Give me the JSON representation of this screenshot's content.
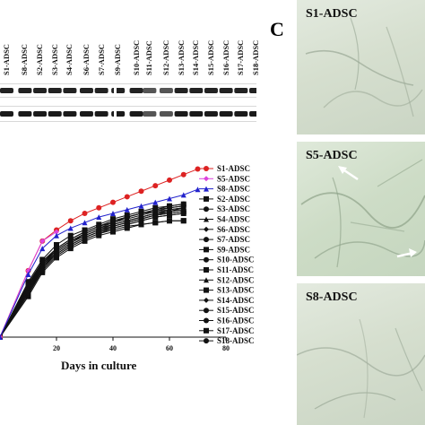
{
  "panel_c_letter": "C",
  "blot": {
    "lane_labels": [
      "S1-ADSC",
      "S8-ADSC",
      "S2-ADSC",
      "S3-ADSC",
      "S4-ADSC",
      "S6-ADSC",
      "S7-ADSC",
      "S9-ADSC",
      "S10-ADSC",
      "S11-ADSC",
      "S12-ADSC",
      "S13-ADSC",
      "S14-ADSC",
      "S15-ADSC",
      "S16-ADSC",
      "S17-ADSC",
      "S18-ADSC"
    ]
  },
  "micrographs": [
    {
      "label": "S1-ADSC"
    },
    {
      "label": "S5-ADSC"
    },
    {
      "label": "S8-ADSC"
    }
  ],
  "chart_data": {
    "type": "line",
    "xlabel": "Days in culture",
    "ylabel": "",
    "xlim": [
      0,
      80
    ],
    "xticks": [
      20,
      40,
      60,
      80
    ],
    "ylim": [
      0,
      100
    ],
    "legend_position": "right",
    "series": [
      {
        "name": "S1-ADSC",
        "color": "#dd2222",
        "marker": "circle",
        "x": [
          0,
          10,
          15,
          20,
          25,
          30,
          35,
          40,
          45,
          50,
          55,
          60,
          65,
          70
        ],
        "y": [
          0,
          36,
          52,
          58,
          63,
          67,
          70,
          73,
          76,
          79,
          82,
          85,
          88,
          91
        ]
      },
      {
        "name": "S5-ADSC",
        "color": "#dd44dd",
        "marker": "diamond",
        "x": [
          0,
          10,
          15,
          20
        ],
        "y": [
          0,
          36,
          52,
          57
        ]
      },
      {
        "name": "S8-ADSC",
        "color": "#2222cc",
        "marker": "triangle",
        "x": [
          0,
          10,
          15,
          20,
          25,
          30,
          35,
          40,
          45,
          50,
          55,
          60,
          65,
          70
        ],
        "y": [
          0,
          34,
          48,
          55,
          59,
          62,
          65,
          67,
          69,
          71,
          73,
          75,
          77,
          80
        ]
      },
      {
        "name": "S2-ADSC",
        "color": "#111111",
        "marker": "square",
        "x": [
          0,
          10,
          15,
          20,
          25,
          30,
          35,
          40,
          45,
          50,
          55,
          60,
          65
        ],
        "y": [
          0,
          30,
          42,
          50,
          55,
          58,
          61,
          64,
          66,
          68,
          70,
          71,
          72
        ]
      },
      {
        "name": "S3-ADSC",
        "color": "#111111",
        "marker": "circle",
        "x": [
          0,
          10,
          15,
          20,
          25,
          30,
          35,
          40,
          45,
          50,
          55,
          60,
          65
        ],
        "y": [
          0,
          28,
          40,
          48,
          53,
          57,
          60,
          62,
          65,
          67,
          68,
          70,
          71
        ]
      },
      {
        "name": "S4-ADSC",
        "color": "#111111",
        "marker": "triangle",
        "x": [
          0,
          10,
          15,
          20,
          25,
          30,
          35,
          40,
          45,
          50,
          55,
          60,
          65
        ],
        "y": [
          0,
          26,
          39,
          47,
          52,
          55,
          58,
          61,
          63,
          65,
          67,
          69,
          70
        ]
      },
      {
        "name": "S6-ADSC",
        "color": "#111111",
        "marker": "diamond",
        "x": [
          0,
          10,
          15,
          20,
          25,
          30,
          35,
          40,
          45,
          50,
          55,
          60,
          65
        ],
        "y": [
          0,
          25,
          38,
          46,
          51,
          55,
          58,
          60,
          62,
          64,
          66,
          68,
          69
        ]
      },
      {
        "name": "S7-ADSC",
        "color": "#111111",
        "marker": "circle",
        "x": [
          0,
          10,
          15,
          20,
          25,
          30,
          35,
          40,
          45,
          50,
          55,
          60,
          65
        ],
        "y": [
          0,
          27,
          40,
          47,
          52,
          56,
          59,
          61,
          63,
          65,
          67,
          68,
          70
        ]
      },
      {
        "name": "S9-ADSC",
        "color": "#111111",
        "marker": "square",
        "x": [
          0,
          10,
          15,
          20,
          25,
          30,
          35,
          40,
          45,
          50,
          55,
          60,
          65
        ],
        "y": [
          0,
          24,
          37,
          45,
          50,
          54,
          57,
          59,
          61,
          63,
          65,
          66,
          67
        ]
      },
      {
        "name": "S10-ADSC",
        "color": "#111111",
        "marker": "circle",
        "x": [
          0,
          10,
          15,
          20,
          25,
          30,
          35,
          40,
          45,
          50,
          55,
          60,
          65
        ],
        "y": [
          0,
          29,
          41,
          48,
          53,
          57,
          60,
          63,
          65,
          67,
          69,
          70,
          71
        ]
      },
      {
        "name": "S11-ADSC",
        "color": "#111111",
        "marker": "square",
        "x": [
          0,
          10,
          15,
          20,
          25,
          30,
          35,
          40,
          45,
          50,
          55,
          60,
          65
        ],
        "y": [
          0,
          22,
          35,
          43,
          48,
          52,
          55,
          57,
          59,
          61,
          62,
          63,
          63
        ]
      },
      {
        "name": "S12-ADSC",
        "color": "#111111",
        "marker": "triangle",
        "x": [
          0,
          10,
          15,
          20,
          25,
          30,
          35,
          40,
          45,
          50,
          55,
          60,
          65
        ],
        "y": [
          0,
          28,
          40,
          47,
          52,
          56,
          59,
          62,
          64,
          66,
          68,
          69,
          70
        ]
      },
      {
        "name": "S13-ADSC",
        "color": "#111111",
        "marker": "square",
        "x": [
          0,
          10,
          15,
          20,
          25,
          30,
          35,
          40,
          45,
          50,
          55,
          60,
          65
        ],
        "y": [
          0,
          23,
          36,
          44,
          49,
          53,
          56,
          58,
          60,
          61,
          62,
          63,
          63
        ]
      },
      {
        "name": "S14-ADSC",
        "color": "#111111",
        "marker": "diamond",
        "x": [
          0,
          10,
          15,
          20,
          25,
          30,
          35,
          40,
          45,
          50,
          55,
          60,
          65
        ],
        "y": [
          0,
          27,
          39,
          46,
          51,
          55,
          58,
          61,
          63,
          65,
          67,
          68,
          69
        ]
      },
      {
        "name": "S15-ADSC",
        "color": "#111111",
        "marker": "circle",
        "x": [
          0,
          10,
          15,
          20,
          25,
          30,
          35,
          40,
          45,
          50,
          55,
          60,
          65
        ],
        "y": [
          0,
          26,
          38,
          45,
          50,
          54,
          57,
          60,
          62,
          64,
          66,
          67,
          68
        ]
      },
      {
        "name": "S16-ADSC",
        "color": "#111111",
        "marker": "circle",
        "x": [
          0,
          10,
          15,
          20,
          25,
          30,
          35,
          40,
          45,
          50,
          55,
          60,
          65
        ],
        "y": [
          0,
          28,
          41,
          48,
          53,
          57,
          60,
          63,
          65,
          67,
          69,
          71,
          72
        ]
      },
      {
        "name": "S17-ADSC",
        "color": "#111111",
        "marker": "square",
        "x": [
          0,
          10,
          15,
          20,
          25,
          30,
          35,
          40,
          45,
          50,
          55,
          60,
          65
        ],
        "y": [
          0,
          25,
          37,
          45,
          50,
          54,
          57,
          60,
          62,
          64,
          66,
          67,
          68
        ]
      },
      {
        "name": "S18-ADSC",
        "color": "#111111",
        "marker": "circle",
        "x": [
          0,
          10,
          15,
          20,
          25,
          30,
          35,
          40,
          45,
          50,
          55,
          60,
          65
        ],
        "y": [
          0,
          24,
          36,
          44,
          49,
          53,
          56,
          59,
          61,
          63,
          65,
          66,
          67
        ]
      }
    ]
  }
}
